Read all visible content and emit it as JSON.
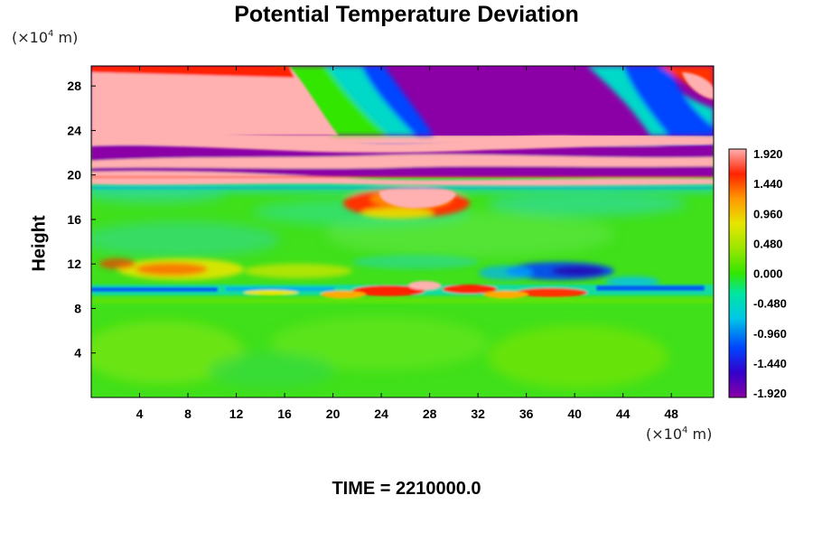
{
  "chart_data": {
    "type": "heatmap",
    "title": "Potential Temperature Deviation",
    "ylabel": "Height",
    "xlabel": "",
    "x_unit": {
      "prefix": "(×10",
      "exp": "4",
      "suffix": " m)"
    },
    "y_unit": {
      "prefix": "(×10",
      "exp": "4",
      "suffix": " m)"
    },
    "x_ticks": [
      "4",
      "8",
      "12",
      "16",
      "20",
      "24",
      "28",
      "32",
      "36",
      "40",
      "44",
      "48"
    ],
    "y_ticks": [
      "4",
      "8",
      "12",
      "16",
      "20",
      "24",
      "28"
    ],
    "xlim": [
      0,
      51.5
    ],
    "ylim": [
      0,
      29.8
    ],
    "colorbar": {
      "min": -1.92,
      "max": 1.92,
      "ticks": [
        "1.920",
        "1.440",
        "0.960",
        "0.480",
        "0.000",
        "-0.480",
        "-0.960",
        "-1.440",
        "-1.920"
      ]
    },
    "field_description": "approximate field: upper bands near 20-28 saturate at +1.920 (pink) and -1.920 (purple); sheared layer near 10 with mixed positive/negative anomalies; lower region near 0.0"
  },
  "footer": "TIME = 2210000.0"
}
